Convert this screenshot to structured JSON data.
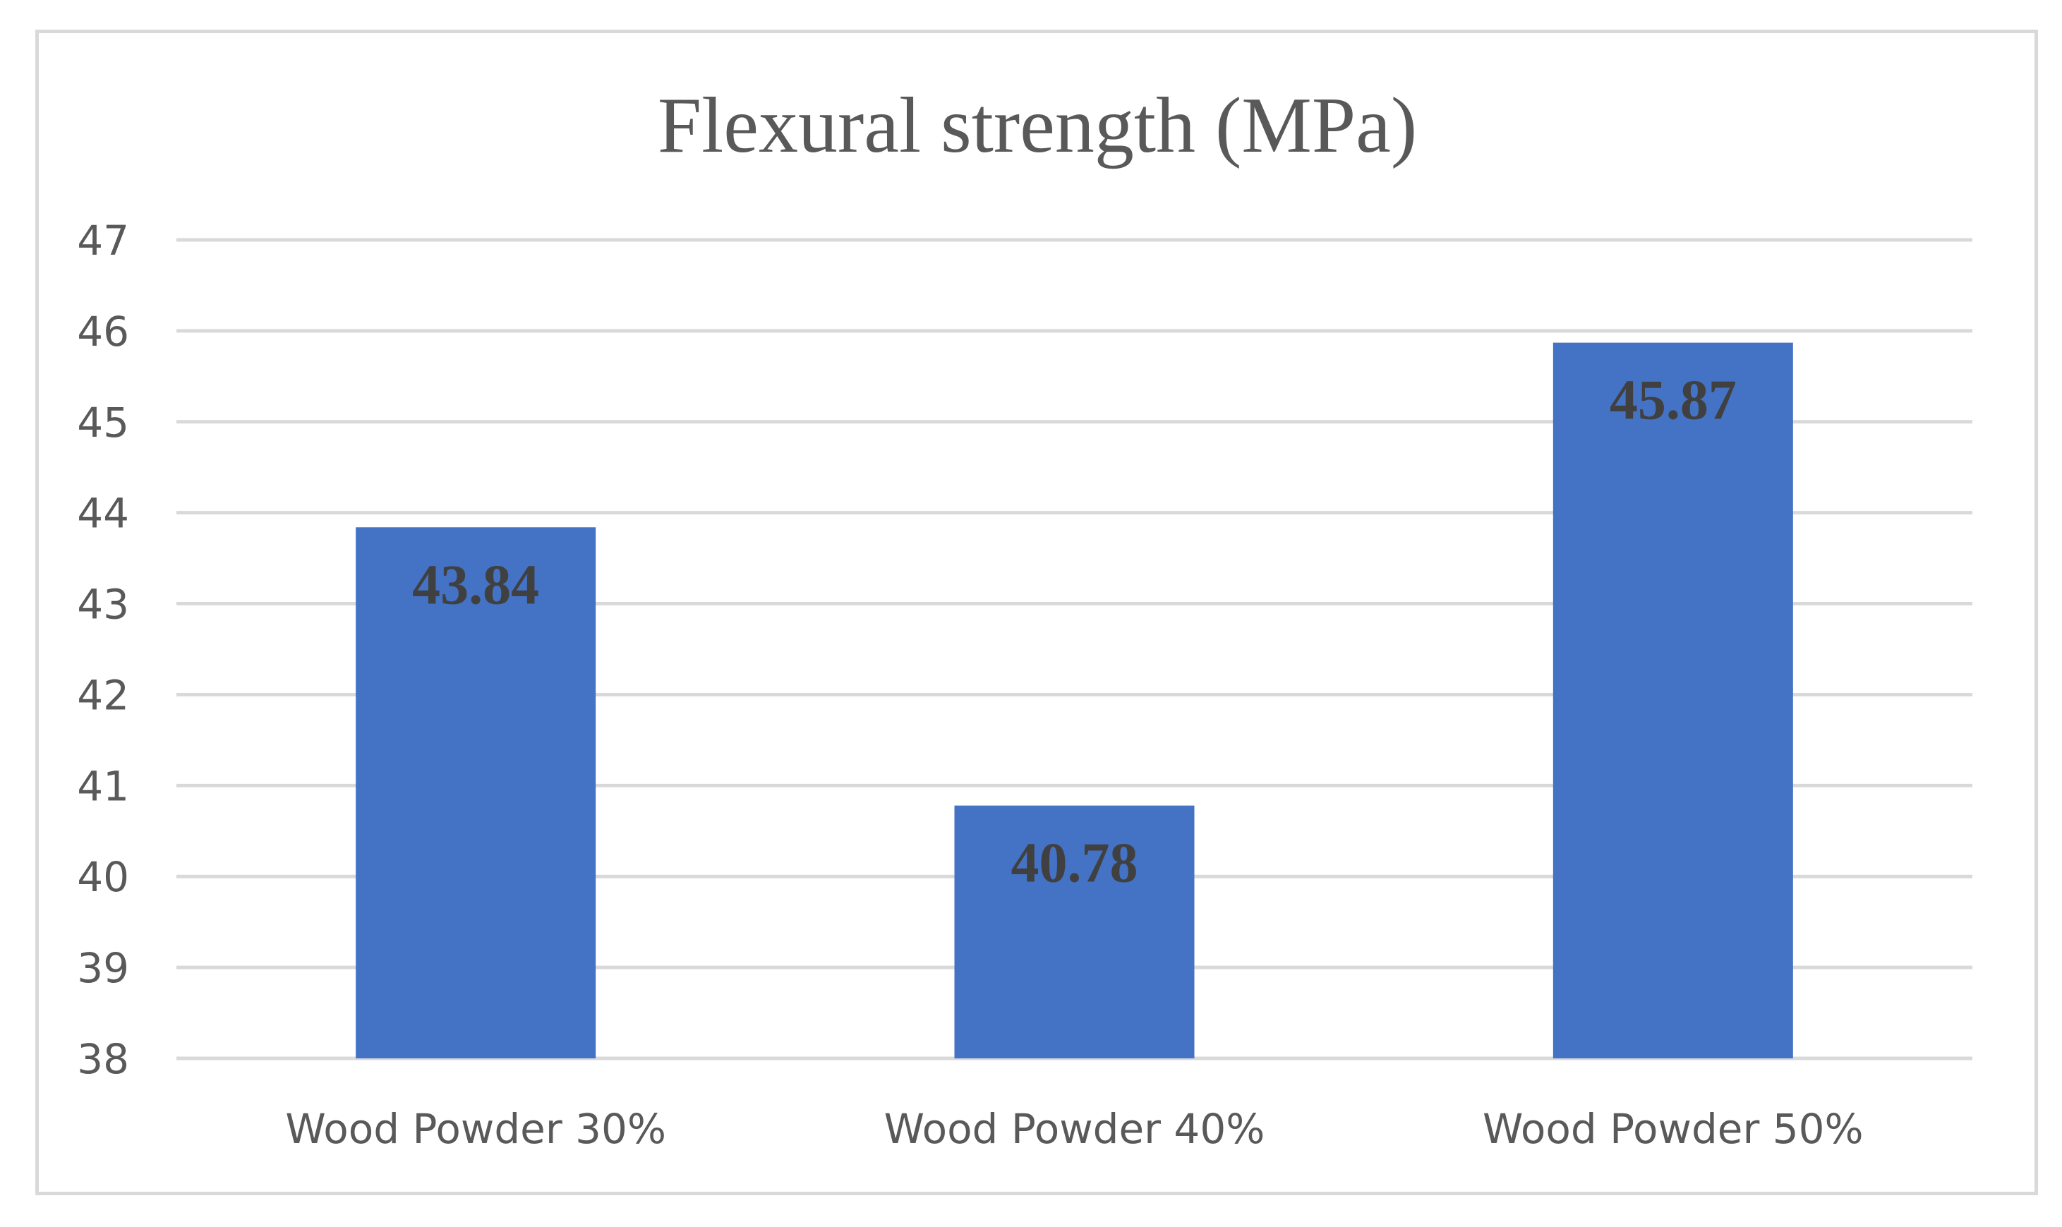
{
  "chart_data": {
    "type": "bar",
    "title": "Flexural strength (MPa)",
    "categories": [
      "Wood Powder 30%",
      "Wood Powder 40%",
      "Wood Powder 50%"
    ],
    "values": [
      43.84,
      40.78,
      45.87
    ],
    "data_labels": [
      "43.84",
      "40.78",
      "45.87"
    ],
    "xlabel": "",
    "ylabel": "",
    "ylim": [
      38,
      47
    ],
    "yticks": [
      38,
      39,
      40,
      41,
      42,
      43,
      44,
      45,
      46,
      47
    ],
    "grid": true,
    "legend": "none",
    "bar_color": "#4472c4",
    "grid_color": "#d9d9d9",
    "text_color": "#595959",
    "label_color": "#404040"
  }
}
